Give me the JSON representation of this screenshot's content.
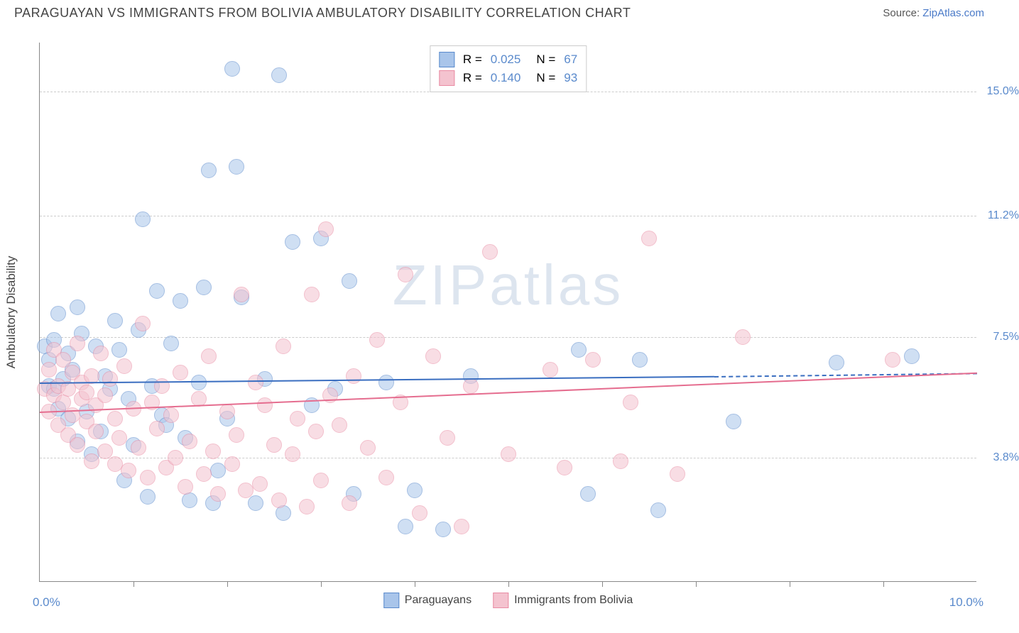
{
  "header": {
    "title": "PARAGUAYAN VS IMMIGRANTS FROM BOLIVIA AMBULATORY DISABILITY CORRELATION CHART",
    "source_label": "Source: ",
    "source_link": "ZipAtlas.com"
  },
  "watermark": {
    "zip": "ZIP",
    "atlas": "atlas"
  },
  "chart": {
    "type": "scatter",
    "yaxis_title": "Ambulatory Disability",
    "xlim": [
      0.0,
      10.0
    ],
    "ylim": [
      0.0,
      16.5
    ],
    "xaxis_min_label": "0.0%",
    "xaxis_max_label": "10.0%",
    "yticks": [
      {
        "value": 3.8,
        "label": "3.8%"
      },
      {
        "value": 7.5,
        "label": "7.5%"
      },
      {
        "value": 11.2,
        "label": "11.2%"
      },
      {
        "value": 15.0,
        "label": "15.0%"
      }
    ],
    "xtick_positions": [
      1.0,
      2.0,
      3.0,
      4.0,
      5.0,
      6.0,
      7.0,
      8.0,
      9.0
    ],
    "background_color": "#ffffff",
    "grid_color": "#cccccc",
    "axis_color": "#888888",
    "marker_radius": 11,
    "marker_opacity": 0.55,
    "series": [
      {
        "name": "Paraguayans",
        "color_fill": "#a9c5ea",
        "color_stroke": "#5a8acc",
        "trend_color": "#3a6ec0",
        "trend": {
          "x0": 0.0,
          "y0": 6.1,
          "x1": 7.2,
          "y1": 6.3,
          "dashed_to_x": 10.0,
          "dashed_to_y": 6.4
        },
        "stats": {
          "R": "0.025",
          "N": "67"
        },
        "points": [
          [
            0.05,
            7.2
          ],
          [
            0.1,
            6.0
          ],
          [
            0.1,
            6.8
          ],
          [
            0.15,
            5.9
          ],
          [
            0.15,
            7.4
          ],
          [
            0.2,
            5.3
          ],
          [
            0.2,
            8.2
          ],
          [
            0.25,
            6.2
          ],
          [
            0.3,
            5.0
          ],
          [
            0.3,
            7.0
          ],
          [
            0.35,
            6.5
          ],
          [
            0.4,
            4.3
          ],
          [
            0.4,
            8.4
          ],
          [
            0.45,
            7.6
          ],
          [
            0.5,
            5.2
          ],
          [
            0.55,
            3.9
          ],
          [
            0.6,
            7.2
          ],
          [
            0.65,
            4.6
          ],
          [
            0.7,
            6.3
          ],
          [
            0.75,
            5.9
          ],
          [
            0.8,
            8.0
          ],
          [
            0.85,
            7.1
          ],
          [
            0.9,
            3.1
          ],
          [
            0.95,
            5.6
          ],
          [
            1.0,
            4.2
          ],
          [
            1.05,
            7.7
          ],
          [
            1.1,
            11.1
          ],
          [
            1.15,
            2.6
          ],
          [
            1.2,
            6.0
          ],
          [
            1.25,
            8.9
          ],
          [
            1.3,
            5.1
          ],
          [
            1.35,
            4.8
          ],
          [
            1.4,
            7.3
          ],
          [
            1.5,
            8.6
          ],
          [
            1.55,
            4.4
          ],
          [
            1.6,
            2.5
          ],
          [
            1.7,
            6.1
          ],
          [
            1.75,
            9.0
          ],
          [
            1.8,
            12.6
          ],
          [
            1.85,
            2.4
          ],
          [
            1.9,
            3.4
          ],
          [
            2.0,
            5.0
          ],
          [
            2.05,
            15.7
          ],
          [
            2.1,
            12.7
          ],
          [
            2.15,
            8.7
          ],
          [
            2.3,
            2.4
          ],
          [
            2.4,
            6.2
          ],
          [
            2.55,
            15.5
          ],
          [
            2.6,
            2.1
          ],
          [
            2.7,
            10.4
          ],
          [
            2.9,
            5.4
          ],
          [
            3.0,
            10.5
          ],
          [
            3.15,
            5.9
          ],
          [
            3.3,
            9.2
          ],
          [
            3.35,
            2.7
          ],
          [
            3.7,
            6.1
          ],
          [
            3.9,
            1.7
          ],
          [
            4.0,
            2.8
          ],
          [
            4.3,
            1.6
          ],
          [
            4.6,
            6.3
          ],
          [
            5.75,
            7.1
          ],
          [
            5.85,
            2.7
          ],
          [
            6.4,
            6.8
          ],
          [
            6.6,
            2.2
          ],
          [
            7.4,
            4.9
          ],
          [
            8.5,
            6.7
          ],
          [
            9.3,
            6.9
          ]
        ]
      },
      {
        "name": "Immigrants from Bolivia",
        "color_fill": "#f4c3cf",
        "color_stroke": "#e98ba3",
        "trend_color": "#e56d8f",
        "trend": {
          "x0": 0.0,
          "y0": 5.2,
          "x1": 10.0,
          "y1": 6.4
        },
        "stats": {
          "R": "0.140",
          "N": "93"
        },
        "points": [
          [
            0.05,
            5.9
          ],
          [
            0.1,
            6.5
          ],
          [
            0.1,
            5.2
          ],
          [
            0.15,
            5.7
          ],
          [
            0.15,
            7.1
          ],
          [
            0.2,
            6.0
          ],
          [
            0.2,
            4.8
          ],
          [
            0.25,
            5.5
          ],
          [
            0.25,
            6.8
          ],
          [
            0.3,
            4.5
          ],
          [
            0.3,
            5.9
          ],
          [
            0.35,
            6.4
          ],
          [
            0.35,
            5.1
          ],
          [
            0.4,
            7.3
          ],
          [
            0.4,
            4.2
          ],
          [
            0.45,
            5.6
          ],
          [
            0.45,
            6.1
          ],
          [
            0.5,
            4.9
          ],
          [
            0.5,
            5.8
          ],
          [
            0.55,
            3.7
          ],
          [
            0.55,
            6.3
          ],
          [
            0.6,
            4.6
          ],
          [
            0.6,
            5.4
          ],
          [
            0.65,
            7.0
          ],
          [
            0.7,
            4.0
          ],
          [
            0.7,
            5.7
          ],
          [
            0.75,
            6.2
          ],
          [
            0.8,
            3.6
          ],
          [
            0.8,
            5.0
          ],
          [
            0.85,
            4.4
          ],
          [
            0.9,
            6.6
          ],
          [
            0.95,
            3.4
          ],
          [
            1.0,
            5.3
          ],
          [
            1.05,
            4.1
          ],
          [
            1.1,
            7.9
          ],
          [
            1.15,
            3.2
          ],
          [
            1.2,
            5.5
          ],
          [
            1.25,
            4.7
          ],
          [
            1.3,
            6.0
          ],
          [
            1.35,
            3.5
          ],
          [
            1.4,
            5.1
          ],
          [
            1.45,
            3.8
          ],
          [
            1.5,
            6.4
          ],
          [
            1.55,
            2.9
          ],
          [
            1.6,
            4.3
          ],
          [
            1.7,
            5.6
          ],
          [
            1.75,
            3.3
          ],
          [
            1.8,
            6.9
          ],
          [
            1.85,
            4.0
          ],
          [
            1.9,
            2.7
          ],
          [
            2.0,
            5.2
          ],
          [
            2.05,
            3.6
          ],
          [
            2.1,
            4.5
          ],
          [
            2.15,
            8.8
          ],
          [
            2.2,
            2.8
          ],
          [
            2.3,
            6.1
          ],
          [
            2.35,
            3.0
          ],
          [
            2.4,
            5.4
          ],
          [
            2.5,
            4.2
          ],
          [
            2.55,
            2.5
          ],
          [
            2.6,
            7.2
          ],
          [
            2.7,
            3.9
          ],
          [
            2.75,
            5.0
          ],
          [
            2.85,
            2.3
          ],
          [
            2.9,
            8.8
          ],
          [
            2.95,
            4.6
          ],
          [
            3.0,
            3.1
          ],
          [
            3.05,
            10.8
          ],
          [
            3.1,
            5.7
          ],
          [
            3.2,
            4.8
          ],
          [
            3.3,
            2.4
          ],
          [
            3.35,
            6.3
          ],
          [
            3.5,
            4.1
          ],
          [
            3.6,
            7.4
          ],
          [
            3.7,
            3.2
          ],
          [
            3.85,
            5.5
          ],
          [
            3.9,
            9.4
          ],
          [
            4.05,
            2.1
          ],
          [
            4.2,
            6.9
          ],
          [
            4.35,
            4.4
          ],
          [
            4.5,
            1.7
          ],
          [
            4.6,
            6.0
          ],
          [
            4.8,
            10.1
          ],
          [
            5.0,
            3.9
          ],
          [
            5.45,
            6.5
          ],
          [
            5.6,
            3.5
          ],
          [
            5.9,
            6.8
          ],
          [
            6.2,
            3.7
          ],
          [
            6.3,
            5.5
          ],
          [
            6.5,
            10.5
          ],
          [
            6.8,
            3.3
          ],
          [
            7.5,
            7.5
          ],
          [
            9.1,
            6.8
          ]
        ]
      }
    ],
    "stats_legend": {
      "R_label": "R =",
      "N_label": "N ="
    }
  }
}
